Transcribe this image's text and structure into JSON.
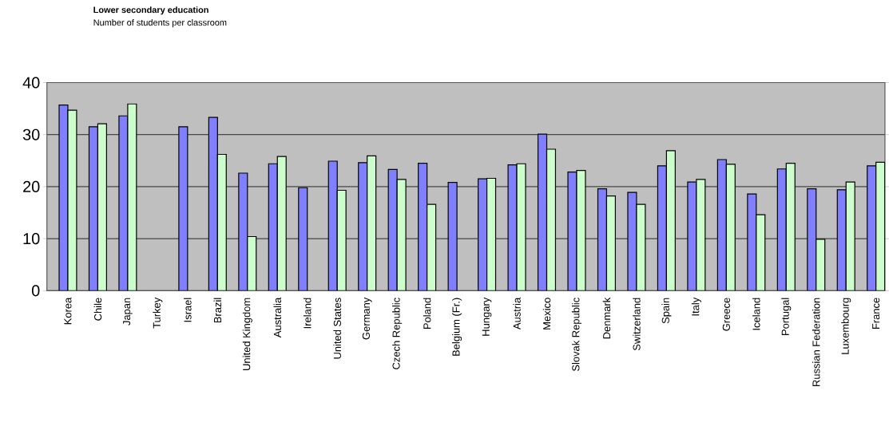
{
  "chart_data": {
    "type": "bar",
    "title": "Lower secondary education",
    "subtitle": "Number of students per classroom",
    "categories": [
      "Korea",
      "Chile",
      "Japan",
      "Turkey",
      "Israel",
      "Brazil",
      "United Kingdom",
      "Australia",
      "Ireland",
      "United States",
      "Germany",
      "Czech Republic",
      "Poland",
      "Belgium (Fr.)",
      "Hungary",
      "Austria",
      "Mexico",
      "Slovak Republic",
      "Denmark",
      "Switzerland",
      "Spain",
      "Italy",
      "Greece",
      "Iceland",
      "Portugal",
      "Russian Federation",
      "Luxembourg",
      "France"
    ],
    "series": [
      {
        "color": "#8080ff",
        "values": [
          35.7,
          31.5,
          33.6,
          null,
          31.5,
          33.3,
          22.6,
          24.4,
          19.8,
          24.9,
          24.6,
          23.3,
          24.5,
          20.8,
          21.5,
          24.2,
          30.1,
          22.8,
          19.6,
          18.9,
          24.0,
          20.9,
          25.2,
          18.6,
          23.4,
          19.6,
          19.4,
          24.0
        ]
      },
      {
        "color": "#ccffcc",
        "values": [
          34.7,
          32.1,
          35.9,
          null,
          null,
          26.2,
          10.4,
          25.8,
          null,
          19.3,
          25.9,
          21.4,
          16.6,
          null,
          21.6,
          24.4,
          27.2,
          23.1,
          18.2,
          16.6,
          26.9,
          21.4,
          24.3,
          14.6,
          24.5,
          9.9,
          20.9,
          24.7
        ]
      }
    ],
    "ylim": [
      0,
      40
    ],
    "yticks": [
      0,
      10,
      20,
      30,
      40
    ],
    "grid": "y"
  }
}
